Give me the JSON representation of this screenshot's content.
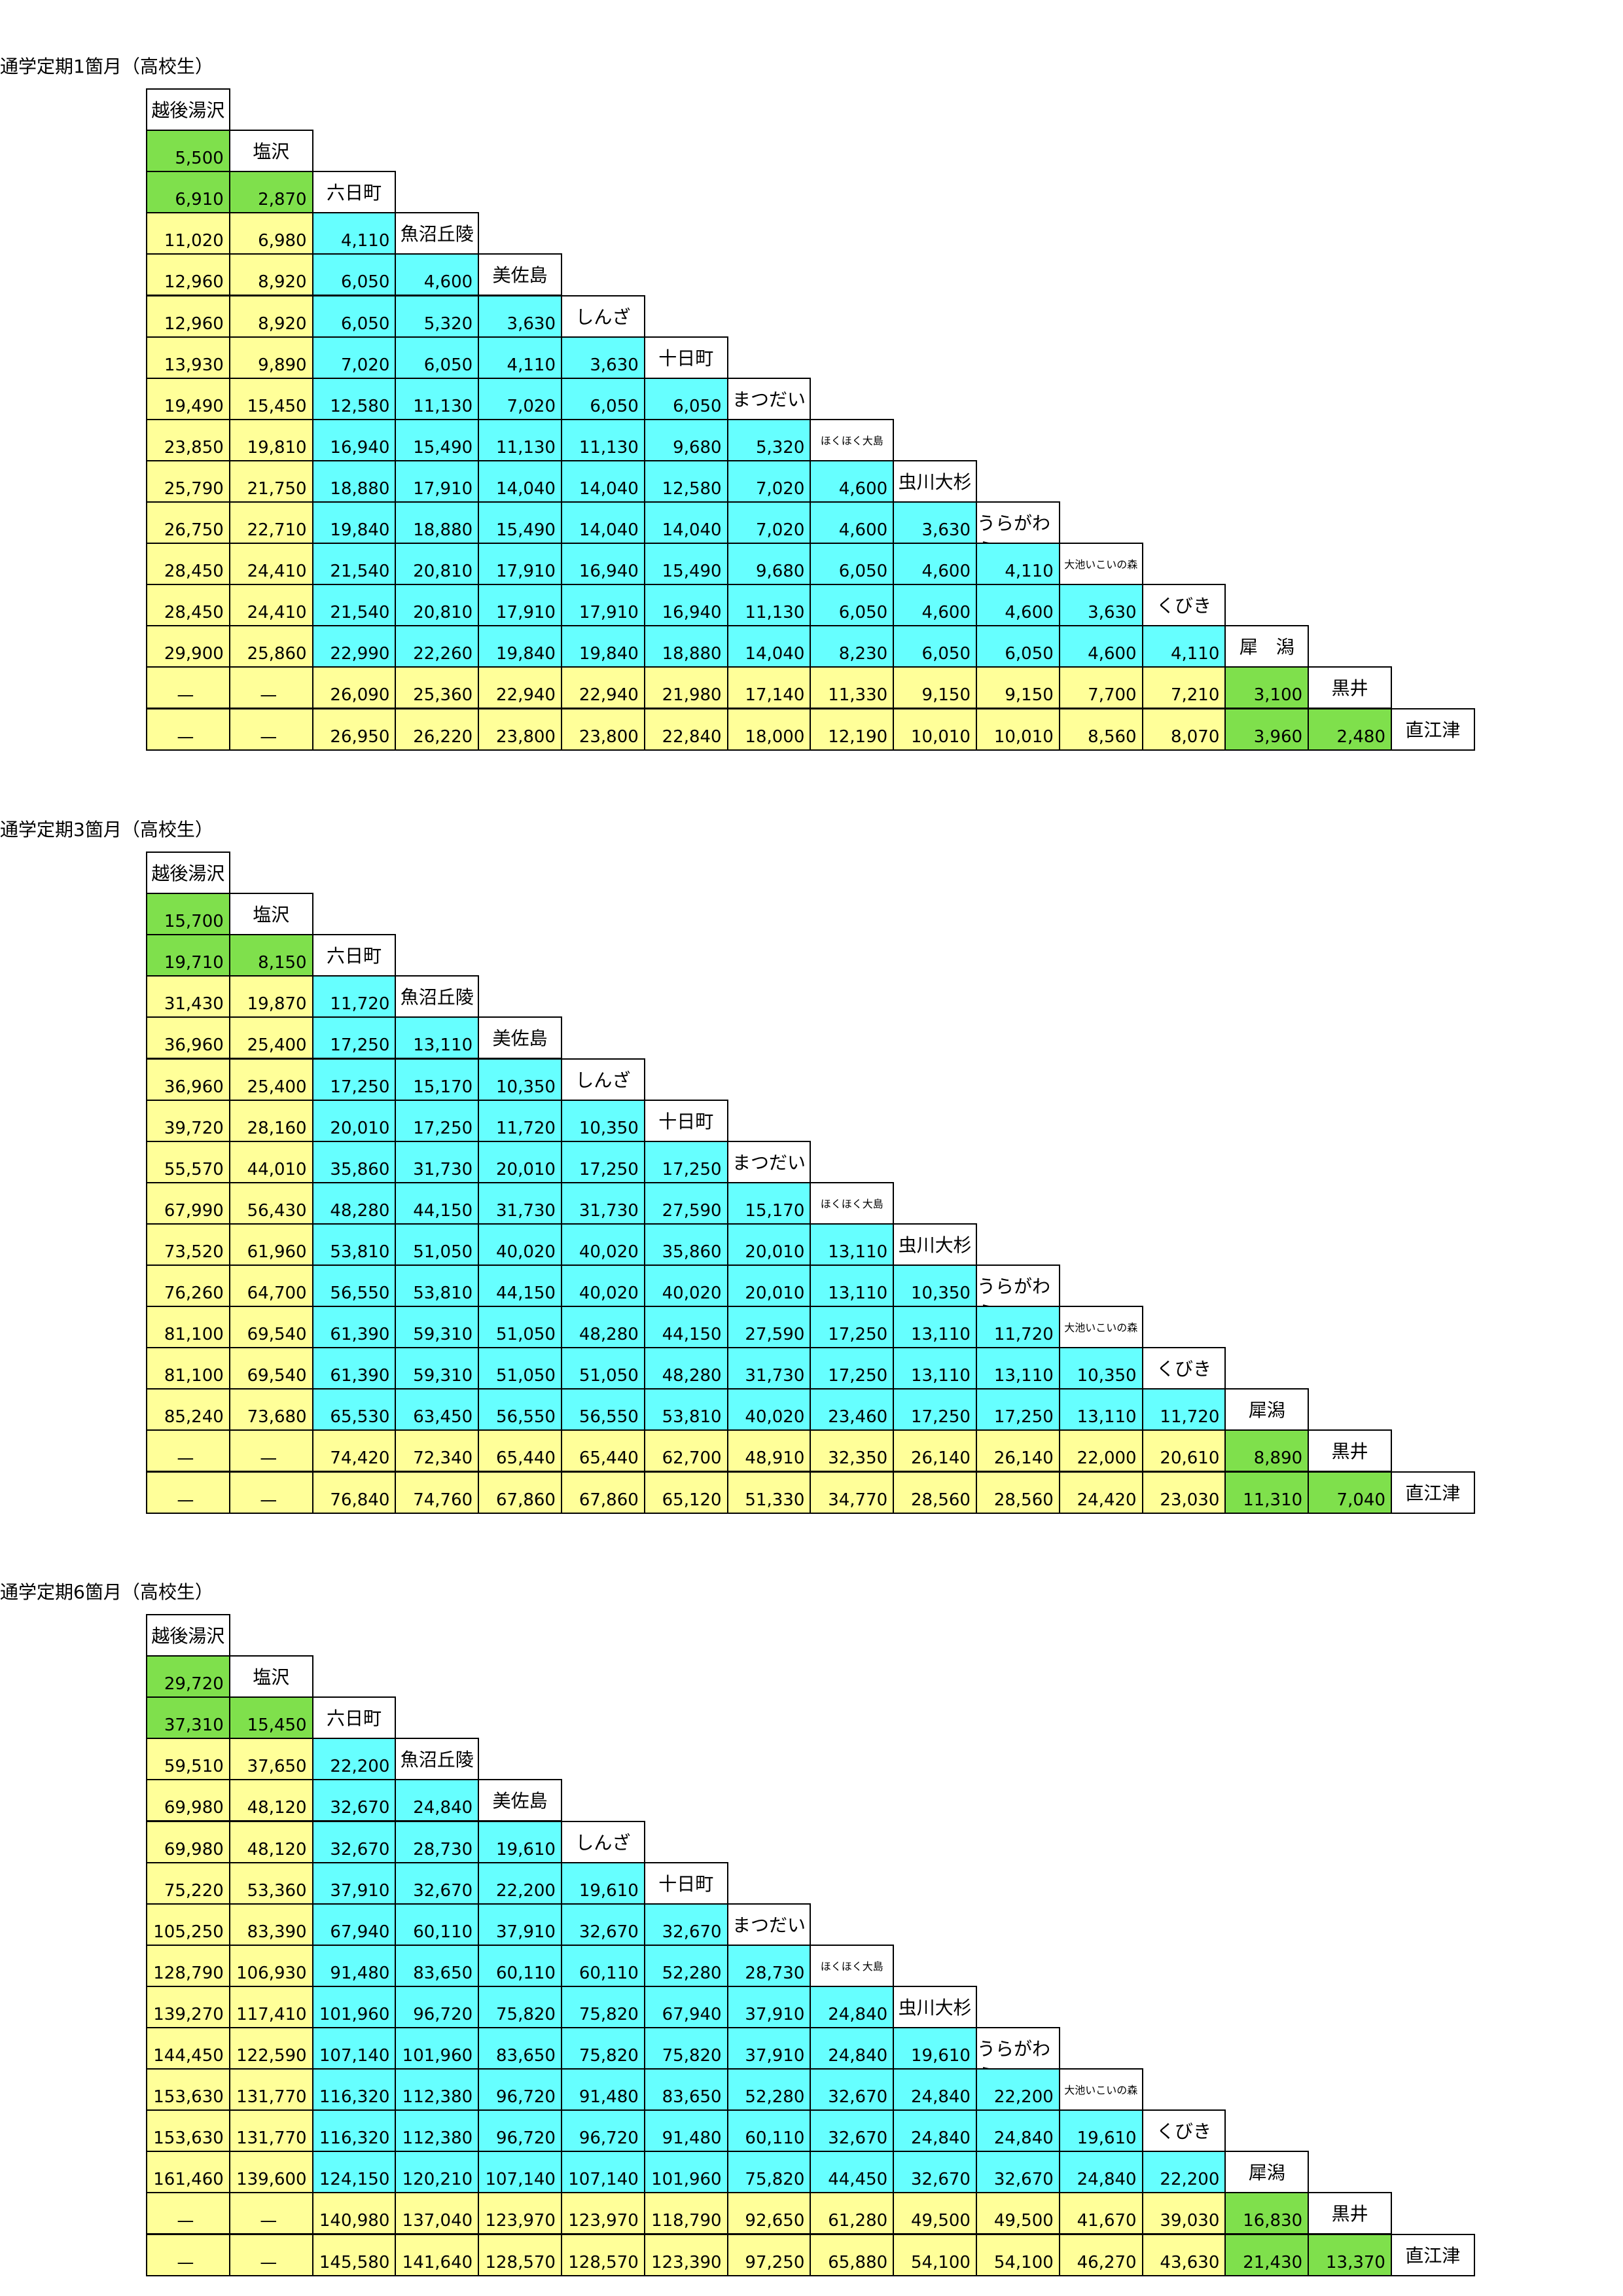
{
  "tables": [
    {
      "title": "通学定期1箇月（高校生）",
      "stations": [
        "越後湯沢",
        "塩沢",
        "六日町",
        "魚沼丘陵",
        "美佐島",
        "しんざ",
        "十日町",
        "まつだい",
        "ほくほく大島",
        "虫川大杉",
        "うらがわら",
        "大池いこいの森",
        "くびき",
        "犀　潟",
        "黒井",
        "直江津"
      ],
      "rows": [
        [
          "5,500"
        ],
        [
          "6,910",
          "2,870"
        ],
        [
          "11,020",
          "6,980",
          "4,110"
        ],
        [
          "12,960",
          "8,920",
          "6,050",
          "4,600"
        ],
        [
          "12,960",
          "8,920",
          "6,050",
          "5,320",
          "3,630"
        ],
        [
          "13,930",
          "9,890",
          "7,020",
          "6,050",
          "4,110",
          "3,630"
        ],
        [
          "19,490",
          "15,450",
          "12,580",
          "11,130",
          "7,020",
          "6,050",
          "6,050"
        ],
        [
          "23,850",
          "19,810",
          "16,940",
          "15,490",
          "11,130",
          "11,130",
          "9,680",
          "5,320"
        ],
        [
          "25,790",
          "21,750",
          "18,880",
          "17,910",
          "14,040",
          "14,040",
          "12,580",
          "7,020",
          "4,600"
        ],
        [
          "26,750",
          "22,710",
          "19,840",
          "18,880",
          "15,490",
          "14,040",
          "14,040",
          "7,020",
          "4,600",
          "3,630"
        ],
        [
          "28,450",
          "24,410",
          "21,540",
          "20,810",
          "17,910",
          "16,940",
          "15,490",
          "9,680",
          "6,050",
          "4,600",
          "4,110"
        ],
        [
          "28,450",
          "24,410",
          "21,540",
          "20,810",
          "17,910",
          "17,910",
          "16,940",
          "11,130",
          "6,050",
          "4,600",
          "4,600",
          "3,630"
        ],
        [
          "29,900",
          "25,860",
          "22,990",
          "22,260",
          "19,840",
          "19,840",
          "18,880",
          "14,040",
          "8,230",
          "6,050",
          "6,050",
          "4,600",
          "4,110"
        ],
        [
          "—",
          "—",
          "26,090",
          "25,360",
          "22,940",
          "22,940",
          "21,980",
          "17,140",
          "11,330",
          "9,150",
          "9,150",
          "7,700",
          "7,210",
          "3,100"
        ],
        [
          "—",
          "—",
          "26,950",
          "26,220",
          "23,800",
          "23,800",
          "22,840",
          "18,000",
          "12,190",
          "10,010",
          "10,010",
          "8,560",
          "8,070",
          "3,960",
          "2,480"
        ]
      ]
    },
    {
      "title": "通学定期3箇月（高校生）",
      "stations": [
        "越後湯沢",
        "塩沢",
        "六日町",
        "魚沼丘陵",
        "美佐島",
        "しんざ",
        "十日町",
        "まつだい",
        "ほくほく大島",
        "虫川大杉",
        "うらがわら",
        "大池いこいの森",
        "くびき",
        "犀潟",
        "黒井",
        "直江津"
      ],
      "rows": [
        [
          "15,700"
        ],
        [
          "19,710",
          "8,150"
        ],
        [
          "31,430",
          "19,870",
          "11,720"
        ],
        [
          "36,960",
          "25,400",
          "17,250",
          "13,110"
        ],
        [
          "36,960",
          "25,400",
          "17,250",
          "15,170",
          "10,350"
        ],
        [
          "39,720",
          "28,160",
          "20,010",
          "17,250",
          "11,720",
          "10,350"
        ],
        [
          "55,570",
          "44,010",
          "35,860",
          "31,730",
          "20,010",
          "17,250",
          "17,250"
        ],
        [
          "67,990",
          "56,430",
          "48,280",
          "44,150",
          "31,730",
          "31,730",
          "27,590",
          "15,170"
        ],
        [
          "73,520",
          "61,960",
          "53,810",
          "51,050",
          "40,020",
          "40,020",
          "35,860",
          "20,010",
          "13,110"
        ],
        [
          "76,260",
          "64,700",
          "56,550",
          "53,810",
          "44,150",
          "40,020",
          "40,020",
          "20,010",
          "13,110",
          "10,350"
        ],
        [
          "81,100",
          "69,540",
          "61,390",
          "59,310",
          "51,050",
          "48,280",
          "44,150",
          "27,590",
          "17,250",
          "13,110",
          "11,720"
        ],
        [
          "81,100",
          "69,540",
          "61,390",
          "59,310",
          "51,050",
          "51,050",
          "48,280",
          "31,730",
          "17,250",
          "13,110",
          "13,110",
          "10,350"
        ],
        [
          "85,240",
          "73,680",
          "65,530",
          "63,450",
          "56,550",
          "56,550",
          "53,810",
          "40,020",
          "23,460",
          "17,250",
          "17,250",
          "13,110",
          "11,720"
        ],
        [
          "—",
          "—",
          "74,420",
          "72,340",
          "65,440",
          "65,440",
          "62,700",
          "48,910",
          "32,350",
          "26,140",
          "26,140",
          "22,000",
          "20,610",
          "8,890"
        ],
        [
          "—",
          "—",
          "76,840",
          "74,760",
          "67,860",
          "67,860",
          "65,120",
          "51,330",
          "34,770",
          "28,560",
          "28,560",
          "24,420",
          "23,030",
          "11,310",
          "7,040"
        ]
      ]
    },
    {
      "title": "通学定期6箇月（高校生）",
      "stations": [
        "越後湯沢",
        "塩沢",
        "六日町",
        "魚沼丘陵",
        "美佐島",
        "しんざ",
        "十日町",
        "まつだい",
        "ほくほく大島",
        "虫川大杉",
        "うらがわら",
        "大池いこいの森",
        "くびき",
        "犀潟",
        "黒井",
        "直江津"
      ],
      "rows": [
        [
          "29,720"
        ],
        [
          "37,310",
          "15,450"
        ],
        [
          "59,510",
          "37,650",
          "22,200"
        ],
        [
          "69,980",
          "48,120",
          "32,670",
          "24,840"
        ],
        [
          "69,980",
          "48,120",
          "32,670",
          "28,730",
          "19,610"
        ],
        [
          "75,220",
          "53,360",
          "37,910",
          "32,670",
          "22,200",
          "19,610"
        ],
        [
          "105,250",
          "83,390",
          "67,940",
          "60,110",
          "37,910",
          "32,670",
          "32,670"
        ],
        [
          "128,790",
          "106,930",
          "91,480",
          "83,650",
          "60,110",
          "60,110",
          "52,280",
          "28,730"
        ],
        [
          "139,270",
          "117,410",
          "101,960",
          "96,720",
          "75,820",
          "75,820",
          "67,940",
          "37,910",
          "24,840"
        ],
        [
          "144,450",
          "122,590",
          "107,140",
          "101,960",
          "83,650",
          "75,820",
          "75,820",
          "37,910",
          "24,840",
          "19,610"
        ],
        [
          "153,630",
          "131,770",
          "116,320",
          "112,380",
          "96,720",
          "91,480",
          "83,650",
          "52,280",
          "32,670",
          "24,840",
          "22,200"
        ],
        [
          "153,630",
          "131,770",
          "116,320",
          "112,380",
          "96,720",
          "96,720",
          "91,480",
          "60,110",
          "32,670",
          "24,840",
          "24,840",
          "19,610"
        ],
        [
          "161,460",
          "139,600",
          "124,150",
          "120,210",
          "107,140",
          "107,140",
          "101,960",
          "75,820",
          "44,450",
          "32,670",
          "32,670",
          "24,840",
          "22,200"
        ],
        [
          "—",
          "—",
          "140,980",
          "137,040",
          "123,970",
          "123,970",
          "118,790",
          "92,650",
          "61,280",
          "49,500",
          "49,500",
          "41,670",
          "39,030",
          "16,830"
        ],
        [
          "—",
          "—",
          "145,580",
          "141,640",
          "128,570",
          "128,570",
          "123,390",
          "97,250",
          "65,880",
          "54,100",
          "54,100",
          "46,270",
          "43,630",
          "21,430",
          "13,370"
        ]
      ]
    }
  ]
}
